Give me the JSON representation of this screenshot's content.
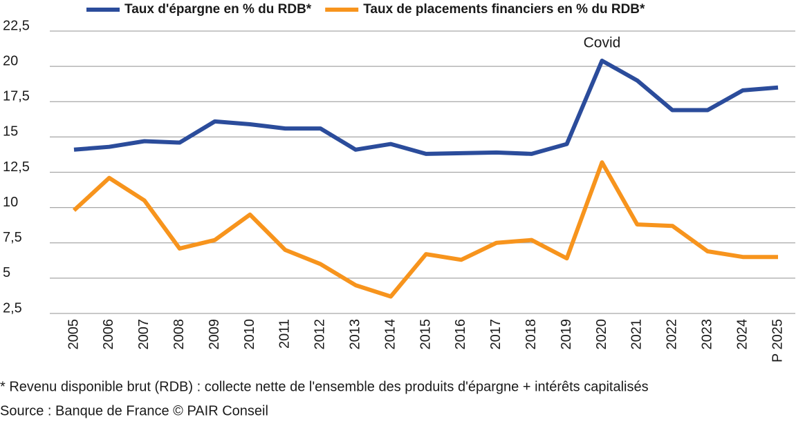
{
  "chart_data": {
    "type": "line",
    "categories": [
      "2005",
      "2006",
      "2007",
      "2008",
      "2009",
      "2010",
      "2011",
      "2012",
      "2013",
      "2014",
      "2015",
      "2016",
      "2017",
      "2018",
      "2019",
      "2020",
      "2021",
      "2022",
      "2023",
      "2024",
      "P 2025"
    ],
    "series": [
      {
        "name": "Taux d'épargne en % du RDB*",
        "color": "#2b4c9b",
        "values": [
          14.1,
          14.3,
          14.7,
          14.6,
          16.1,
          15.9,
          15.6,
          15.6,
          14.1,
          14.5,
          13.8,
          13.85,
          13.9,
          13.8,
          14.5,
          20.4,
          19.0,
          16.9,
          16.9,
          18.3,
          18.5
        ]
      },
      {
        "name": "Taux de placements financiers en % du RDB*",
        "color": "#f7941d",
        "values": [
          9.8,
          12.1,
          10.5,
          7.1,
          7.7,
          9.5,
          7.0,
          6.0,
          4.5,
          3.7,
          6.7,
          6.3,
          7.5,
          7.7,
          6.4,
          13.2,
          8.8,
          8.7,
          6.9,
          6.5,
          6.5
        ]
      }
    ],
    "ylim": [
      2.5,
      22.5
    ],
    "yticks": [
      {
        "value": 2.5,
        "label": "2,5"
      },
      5,
      {
        "value": 7.5,
        "label": "7,5"
      },
      10,
      {
        "value": 12.5,
        "label": "12,5"
      },
      15,
      {
        "value": 17.5,
        "label": "17,5"
      },
      20,
      {
        "value": 22.5,
        "label": "22,5"
      }
    ],
    "grid": true,
    "legend": "top",
    "annotations": [
      {
        "text": "Covid",
        "x": "2020"
      }
    ],
    "footnote": "* Revenu disponible brut (RDB) : collecte nette de l'ensemble des produits d'épargne + intérêts capitalisés",
    "source": "Source  : Banque de France © PAIR Conseil"
  }
}
